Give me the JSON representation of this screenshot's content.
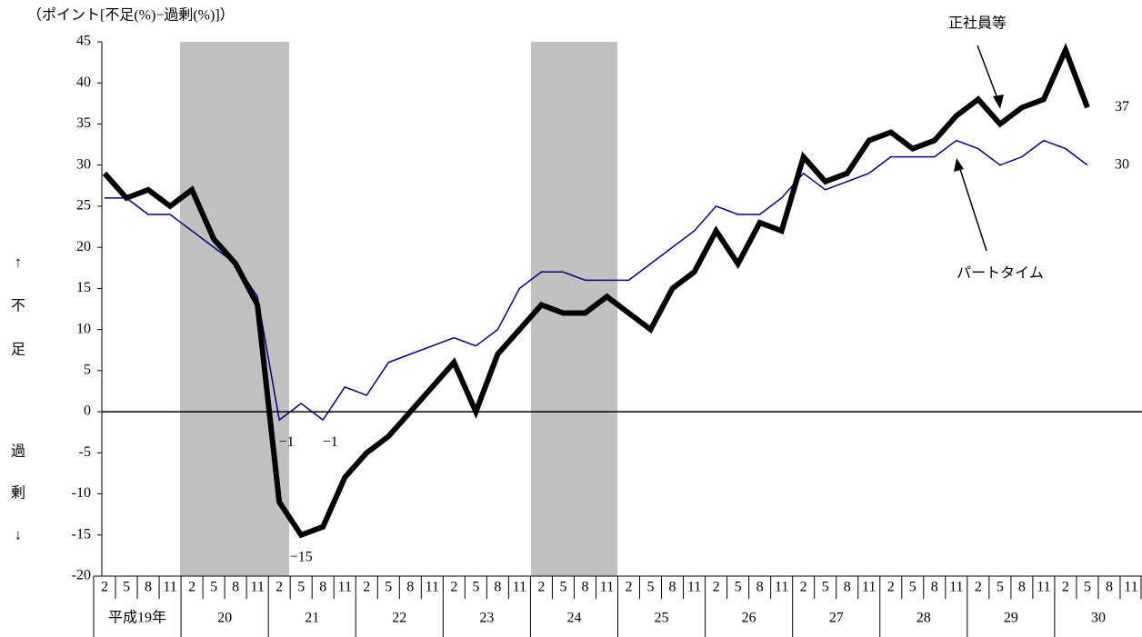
{
  "chart_data": {
    "type": "line",
    "y_label": "（ポイント[不足(%)−過剰(%)]）",
    "side_labels_top": [
      "↑",
      "不",
      "足"
    ],
    "side_labels_bottom": [
      "過",
      "剰",
      "↓"
    ],
    "categories": [
      "2",
      "5",
      "8",
      "11",
      "2",
      "5",
      "8",
      "11",
      "2",
      "5",
      "8",
      "11",
      "2",
      "5",
      "8",
      "11",
      "2",
      "5",
      "8",
      "11",
      "2",
      "5",
      "8",
      "11",
      "2",
      "5",
      "8",
      "11",
      "2",
      "5",
      "8",
      "11",
      "2",
      "5",
      "8",
      "11",
      "2",
      "5",
      "8",
      "11",
      "2",
      "5",
      "8",
      "11",
      "2",
      "5",
      "8",
      "11"
    ],
    "year_labels": [
      "平成19年",
      "20",
      "21",
      "22",
      "23",
      "24",
      "25",
      "26",
      "27",
      "28",
      "29",
      "30"
    ],
    "series": [
      {
        "name": "正社員等",
        "color": "#000000",
        "width": 6,
        "values": [
          29,
          26,
          27,
          25,
          27,
          21,
          18,
          13,
          -11,
          -15,
          -14,
          -8,
          -5,
          -3,
          0,
          3,
          6,
          0,
          7,
          10,
          13,
          12,
          12,
          14,
          12,
          10,
          15,
          17,
          22,
          18,
          23,
          22,
          31,
          28,
          29,
          33,
          34,
          32,
          33,
          36,
          38,
          35,
          37,
          38,
          44,
          37,
          null,
          null
        ],
        "value_labels": [
          null,
          null,
          null,
          null,
          null,
          null,
          null,
          null,
          null,
          "−15",
          null,
          null,
          null,
          null,
          null,
          null,
          null,
          null,
          null,
          null,
          null,
          null,
          null,
          null,
          null,
          null,
          null,
          null,
          null,
          null,
          null,
          null,
          null,
          null,
          null,
          null,
          null,
          null,
          null,
          null,
          null,
          null,
          null,
          null,
          null,
          "37",
          null,
          null
        ]
      },
      {
        "name": "パートタイム",
        "color": "#000080",
        "width": 1.5,
        "values": [
          26,
          26,
          24,
          24,
          22,
          20,
          18,
          14,
          -1,
          1,
          -1,
          3,
          2,
          6,
          7,
          8,
          9,
          8,
          10,
          15,
          17,
          17,
          16,
          16,
          16,
          18,
          20,
          22,
          25,
          24,
          24,
          26,
          29,
          27,
          28,
          29,
          31,
          31,
          31,
          33,
          32,
          30,
          31,
          33,
          32,
          30,
          null,
          null
        ],
        "value_labels": [
          null,
          null,
          null,
          null,
          null,
          null,
          null,
          null,
          "−1",
          null,
          "−1",
          null,
          null,
          null,
          null,
          null,
          null,
          null,
          null,
          null,
          null,
          null,
          null,
          null,
          null,
          null,
          null,
          null,
          null,
          null,
          null,
          null,
          null,
          null,
          null,
          null,
          null,
          null,
          null,
          null,
          null,
          null,
          null,
          null,
          null,
          "30",
          null,
          null
        ]
      }
    ],
    "ylim": [
      -20,
      45
    ],
    "yticks": [
      -20,
      -15,
      -10,
      -5,
      0,
      5,
      10,
      15,
      20,
      25,
      30,
      35,
      40,
      45
    ],
    "grid": false
  }
}
